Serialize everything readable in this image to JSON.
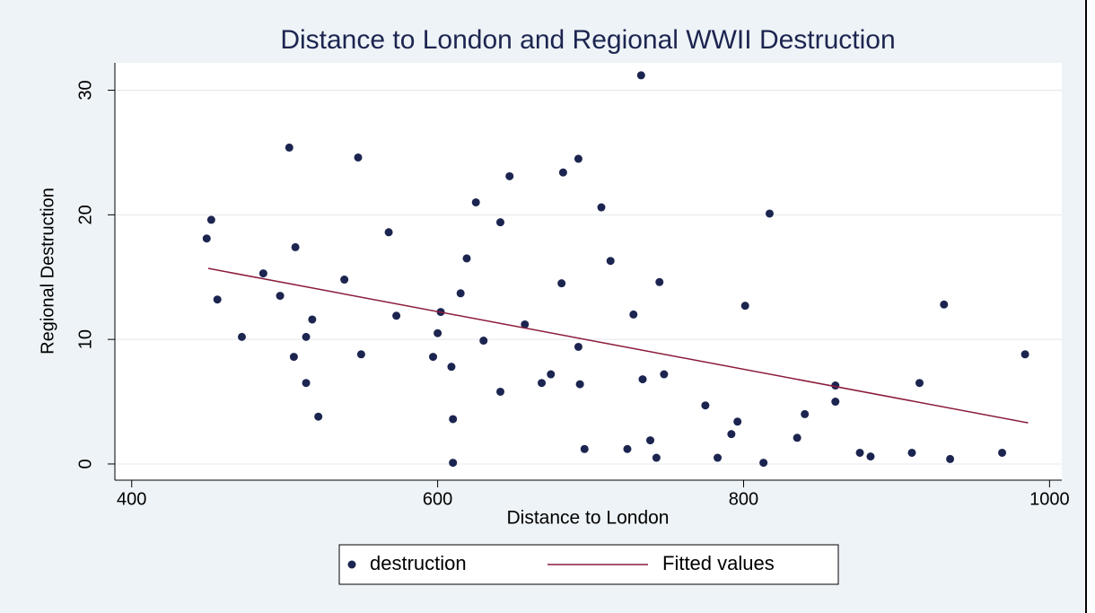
{
  "chart_data": {
    "type": "scatter",
    "title": "Distance to London and Regional WWII Destruction",
    "x_label": "Distance to London",
    "y_label": "Regional Destruction",
    "xlim": [
      389,
      1008
    ],
    "ylim": [
      -1.3,
      32.2
    ],
    "xticks": [
      400,
      600,
      800,
      1000
    ],
    "yticks": [
      0,
      10,
      20,
      30
    ],
    "grid": true,
    "series": [
      {
        "name": "destruction",
        "type": "scatter",
        "color": "#1c2550",
        "x": [
          449,
          452,
          456,
          472,
          486,
          497,
          503,
          507,
          506,
          514,
          514,
          518,
          522,
          539,
          548,
          550,
          568,
          573,
          597,
          600,
          602,
          609,
          610,
          610,
          615,
          619,
          625,
          630,
          641,
          641,
          647,
          657,
          668,
          674,
          681,
          682,
          692,
          692,
          693,
          696,
          707,
          713,
          724,
          728,
          733,
          734,
          739,
          743,
          745,
          748,
          775,
          783,
          792,
          796,
          801,
          813,
          817,
          835,
          840,
          860,
          860,
          876,
          883,
          910,
          915,
          931,
          935,
          969,
          984
        ],
        "values": [
          18.1,
          19.6,
          13.2,
          10.2,
          15.3,
          13.5,
          25.4,
          17.4,
          8.6,
          10.2,
          6.5,
          11.6,
          3.8,
          14.8,
          24.6,
          8.8,
          18.6,
          11.9,
          8.6,
          10.5,
          12.2,
          7.8,
          3.6,
          0.1,
          13.7,
          16.5,
          21.0,
          9.9,
          19.4,
          5.8,
          23.1,
          11.2,
          6.5,
          7.2,
          14.5,
          23.4,
          24.5,
          9.4,
          6.4,
          1.2,
          20.6,
          16.3,
          1.2,
          12.0,
          31.2,
          6.8,
          1.9,
          0.5,
          14.6,
          7.2,
          4.7,
          0.5,
          2.4,
          3.4,
          12.7,
          0.1,
          20.1,
          2.1,
          4.0,
          6.3,
          5.0,
          0.9,
          0.6,
          0.9,
          6.5,
          12.8,
          0.4,
          0.9,
          8.8
        ]
      },
      {
        "name": "Fitted values",
        "type": "line",
        "color": "#8b1a3a",
        "x": [
          450,
          986
        ],
        "values": [
          15.7,
          3.3
        ]
      }
    ]
  }
}
